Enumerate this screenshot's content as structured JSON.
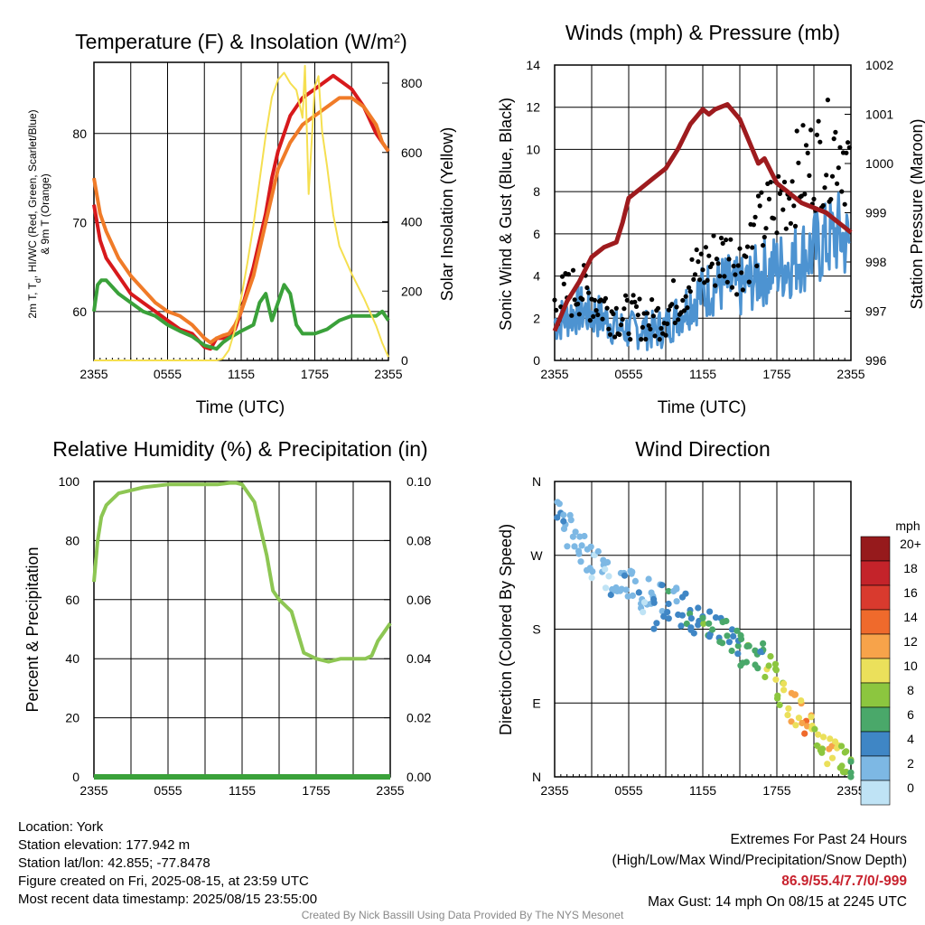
{
  "charts": {
    "temperature": {
      "title_main": "Temperature (F) & Insolation (W/m",
      "title_sup": "2",
      "title_close": ")",
      "xlabel": "Time (UTC)",
      "ylabel_left_line1": "2m T, T",
      "ylabel_left_sub": "d",
      "ylabel_left_line1b": ", HI/WC (Red, Green, Scarlet/Blue)",
      "ylabel_left_line2": "& 9m T (Orange)",
      "ylabel_right": "Solar Insolation (Yellow)"
    },
    "winds": {
      "title": "Winds (mph) & Pressure (mb)",
      "xlabel": "Time (UTC)",
      "ylabel_left": "Sonic Wind & Gust (Blue, Black)",
      "ylabel_right": "Station Pressure (Maroon)"
    },
    "humidity": {
      "title": "Relative Humidity (%) & Precipitation (in)",
      "ylabel_left": "Percent & Precipitation"
    },
    "direction": {
      "title": "Wind Direction",
      "ylabel_left": "Direction (Colored By Speed)",
      "legend_title": "mph"
    }
  },
  "chart_data": [
    {
      "type": "line",
      "title": "Temperature (F) & Insolation (W/m2)",
      "xlabel": "Time (UTC)",
      "x_ticks": [
        "2355",
        "0555",
        "1155",
        "1755",
        "2355"
      ],
      "x_hours": [
        0,
        24
      ],
      "ylim_left": [
        54.5,
        88
      ],
      "y_ticks_left": [
        60,
        70,
        80
      ],
      "ylim_right": [
        0,
        860
      ],
      "y_ticks_right": [
        0,
        200,
        400,
        600,
        800
      ],
      "series": [
        {
          "name": "2m T",
          "color": "#d7191c",
          "axis": "left",
          "x": [
            0,
            0.5,
            1,
            2,
            3,
            4,
            5,
            6,
            7,
            8,
            9,
            9.5,
            10,
            10.5,
            11,
            11.5,
            12,
            13,
            14,
            14.5,
            15,
            16,
            17,
            18,
            19,
            19.5,
            20,
            21,
            22,
            23,
            23.5,
            24
          ],
          "y": [
            72,
            68,
            66,
            64,
            62,
            61,
            60,
            59,
            58,
            57.5,
            56,
            55.8,
            57,
            57,
            57.3,
            58,
            60,
            65,
            71,
            75,
            78,
            82,
            84,
            85,
            86,
            86.5,
            86,
            85,
            83,
            80,
            79,
            78
          ]
        },
        {
          "name": "9m T",
          "color": "#f07b28",
          "axis": "left",
          "x": [
            0,
            0.5,
            1,
            2,
            3,
            4,
            5,
            6,
            7,
            8,
            9,
            9.5,
            10,
            10.5,
            11,
            11.5,
            12,
            13,
            14,
            14.5,
            15,
            16,
            17,
            18,
            19,
            20,
            21,
            22,
            23,
            23.5,
            24
          ],
          "y": [
            75,
            71,
            69,
            66,
            64,
            62.5,
            61,
            60,
            59.5,
            58.5,
            57,
            56.5,
            57,
            57.3,
            57.5,
            58.5,
            60,
            64,
            70,
            73,
            76,
            79,
            81,
            82,
            83,
            84,
            84,
            83,
            81,
            79,
            78
          ]
        },
        {
          "name": "Td",
          "color": "#3aa13a",
          "axis": "left",
          "x": [
            0,
            0.3,
            0.6,
            1,
            2,
            3,
            4,
            5,
            6,
            7,
            8,
            9,
            10,
            10.5,
            11,
            12,
            13,
            13.5,
            14,
            14.5,
            15,
            15.5,
            16,
            16.5,
            17,
            18,
            19,
            20,
            21,
            22,
            23,
            23.5,
            24
          ],
          "y": [
            60,
            63,
            63.5,
            63.5,
            62,
            61,
            60,
            59.5,
            58.5,
            57.8,
            57.2,
            56.2,
            55.8,
            56.5,
            57,
            57.8,
            58.5,
            61,
            62,
            59,
            61,
            63,
            62,
            58.5,
            57.5,
            57.5,
            58,
            59,
            59.5,
            59.5,
            59.5,
            60,
            59
          ]
        },
        {
          "name": "Solar Insolation",
          "color": "#f5df50",
          "axis": "right",
          "x": [
            0,
            0.5,
            1,
            2,
            3,
            4,
            5,
            6,
            7,
            8,
            9,
            10,
            10.5,
            11,
            11.5,
            12,
            12.5,
            13,
            13.5,
            14,
            14.5,
            15,
            15.5,
            16,
            16.5,
            17,
            17.2,
            17.5,
            18,
            18.3,
            18.6,
            19,
            19.5,
            20,
            21,
            22,
            23,
            23.5,
            24
          ],
          "y": [
            0,
            0,
            0,
            0,
            0,
            0,
            0,
            0,
            0,
            0,
            0,
            0,
            5,
            30,
            90,
            180,
            280,
            390,
            520,
            650,
            760,
            810,
            830,
            800,
            780,
            700,
            850,
            480,
            790,
            820,
            660,
            560,
            420,
            330,
            250,
            180,
            100,
            50,
            10
          ]
        }
      ]
    },
    {
      "type": "scatter",
      "title": "Winds (mph) & Pressure (mb)",
      "xlabel": "Time (UTC)",
      "x_ticks": [
        "2355",
        "0555",
        "1155",
        "1755",
        "2355"
      ],
      "ylim_left": [
        0,
        14
      ],
      "y_ticks_left": [
        0,
        2,
        4,
        6,
        8,
        10,
        12,
        14
      ],
      "ylim_right": [
        996,
        1002
      ],
      "y_ticks_right": [
        996,
        997,
        998,
        999,
        1000,
        1001,
        1002
      ],
      "series": [
        {
          "name": "Sonic Wind",
          "color": "#4d93d1",
          "axis": "left",
          "x": [
            0,
            1,
            2,
            3,
            4,
            5,
            6,
            7,
            8,
            9,
            10,
            11,
            12,
            13,
            14,
            15,
            16,
            17,
            18,
            19,
            20,
            21,
            22,
            23,
            24
          ],
          "y": [
            1.8,
            2.1,
            2.4,
            2.2,
            2.0,
            1.6,
            1.4,
            1.5,
            1.4,
            1.6,
            2.2,
            2.8,
            3.2,
            3.6,
            3.6,
            3.4,
            3.8,
            4.2,
            4.4,
            4.6,
            5.0,
            5.2,
            5.6,
            6.0,
            5.4
          ]
        },
        {
          "name": "Gust",
          "color": "#000000",
          "axis": "left",
          "x": [
            0,
            1,
            2,
            3,
            4,
            5,
            6,
            7,
            8,
            9,
            10,
            11,
            12,
            13,
            14,
            15,
            16,
            17,
            18,
            19,
            20,
            21,
            22,
            23,
            24
          ],
          "y": [
            2.6,
            3.1,
            3.4,
            3.0,
            2.6,
            2.2,
            2.0,
            2.0,
            1.9,
            2.2,
            3.0,
            3.8,
            4.4,
            4.8,
            5.0,
            4.6,
            5.6,
            6.6,
            7.4,
            8.2,
            9.0,
            9.4,
            9.8,
            10.4,
            9.0
          ]
        },
        {
          "name": "Station Pressure",
          "color": "#9e1b1e",
          "axis": "right",
          "x": [
            0,
            1,
            2,
            3,
            4,
            5,
            5.5,
            6,
            7,
            8,
            9,
            10,
            11,
            12,
            12.5,
            13,
            14,
            15,
            16,
            16.5,
            17,
            18,
            19,
            20,
            21,
            22,
            22.5,
            23,
            23.5,
            24
          ],
          "y": [
            996.6,
            997.2,
            997.6,
            998.1,
            998.3,
            998.4,
            998.8,
            999.3,
            999.5,
            999.7,
            999.9,
            1000.3,
            1000.8,
            1001.1,
            1001,
            1001.1,
            1001.2,
            1000.9,
            1000.3,
            1000,
            1000.1,
            999.6,
            999.4,
            999.2,
            999.1,
            999,
            998.9,
            998.8,
            998.7,
            998.6
          ]
        }
      ]
    },
    {
      "type": "line",
      "title": "Relative Humidity (%) & Precipitation (in)",
      "ylabel": "Percent & Precipitation",
      "x_ticks": [
        "2355",
        "0555",
        "1155",
        "1755",
        "2355"
      ],
      "ylim_left": [
        0,
        100
      ],
      "y_ticks_left": [
        0,
        20,
        40,
        60,
        80,
        100
      ],
      "ylim_right": [
        0,
        0.1
      ],
      "y_ticks_right": [
        "0.00",
        "0.02",
        "0.04",
        "0.06",
        "0.08",
        "0.10"
      ],
      "series": [
        {
          "name": "Relative Humidity",
          "color": "#8dc653",
          "axis": "left",
          "x": [
            0,
            0.3,
            0.6,
            1,
            2,
            3,
            4,
            5,
            6,
            7,
            8,
            9,
            10,
            11,
            11.5,
            12,
            13,
            14,
            14.5,
            15,
            16,
            17,
            18,
            19,
            20,
            21,
            22,
            22.5,
            23,
            23.5,
            24
          ],
          "y": [
            66,
            80,
            88,
            92,
            96,
            97,
            98,
            98.5,
            99,
            99,
            99,
            99,
            99,
            99.5,
            99.5,
            99,
            93,
            75,
            63,
            60,
            56,
            42,
            40,
            39,
            40,
            40,
            40,
            41,
            46,
            49,
            52
          ]
        },
        {
          "name": "Precipitation",
          "color": "#3aa13a",
          "axis": "right",
          "x": [
            0,
            24
          ],
          "y": [
            0,
            0
          ]
        }
      ]
    },
    {
      "type": "scatter",
      "title": "Wind Direction",
      "ylabel": "Direction (Colored By Speed)",
      "x_ticks": [
        "2355",
        "0555",
        "1155",
        "1755",
        "2355"
      ],
      "y_ticks": [
        "N",
        "E",
        "S",
        "W",
        "N"
      ],
      "ylim": [
        0,
        360
      ],
      "legend_labels": [
        "20+",
        "18",
        "16",
        "14",
        "12",
        "10",
        "8",
        "6",
        "4",
        "2",
        "0"
      ],
      "legend_colors": [
        "#961a1c",
        "#c4232a",
        "#d93a2e",
        "#ef6a2c",
        "#f7a34a",
        "#ebe05b",
        "#8cc63f",
        "#4aa86a",
        "#3f86c5",
        "#7db8e4",
        "#bfe3f5"
      ],
      "series": [
        {
          "name": "Direction",
          "x": [
            0,
            0.5,
            1,
            1.5,
            2,
            2.5,
            3,
            3.5,
            4,
            4.5,
            5,
            5.5,
            6,
            6.5,
            7,
            7.5,
            8,
            8.5,
            9,
            9.5,
            10,
            10.5,
            11,
            11.5,
            12,
            12.5,
            13,
            13.5,
            14,
            14.5,
            15,
            15.5,
            16,
            16.5,
            17,
            17.5,
            18,
            18.5,
            19,
            19.5,
            20,
            20.5,
            21,
            21.5,
            22,
            22.5,
            23,
            23.5,
            24
          ],
          "y": [
            330,
            310,
            300,
            285,
            280,
            270,
            255,
            260,
            250,
            240,
            245,
            240,
            235,
            220,
            210,
            230,
            200,
            215,
            210,
            220,
            200,
            205,
            195,
            190,
            180,
            185,
            175,
            170,
            165,
            160,
            155,
            150,
            145,
            160,
            130,
            120,
            100,
            95,
            85,
            80,
            70,
            55,
            40,
            35,
            30,
            25,
            20,
            15,
            10
          ],
          "speed": [
            1,
            1,
            1,
            1,
            1,
            1,
            0,
            1,
            0,
            1,
            1,
            1,
            1,
            1,
            0,
            1,
            2,
            1,
            2,
            1,
            2,
            2,
            2,
            2,
            3,
            2,
            2,
            3,
            2,
            2,
            3,
            3,
            3,
            2,
            4,
            4,
            4,
            5,
            6,
            5,
            6,
            5,
            4,
            4,
            5,
            5,
            4,
            4,
            3
          ]
        }
      ]
    }
  ],
  "footer": {
    "location": "Location: York",
    "elevation": "Station elevation: 177.942 m",
    "latlon": "Station lat/lon: 42.855; -77.8478",
    "created": "Figure created on Fri, 2025-08-15, at 23:59 UTC",
    "recent": "Most recent data timestamp: 2025/08/15 23:55:00",
    "extremes_title": "Extremes For Past 24 Hours",
    "extremes_fields": "(High/Low/Max Wind/Precipitation/Snow Depth)",
    "extremes_values": "86.9/55.4/7.7/0/-999",
    "max_gust": "Max Gust: 14 mph On 08/15 at 2245 UTC",
    "credit": "Created By Nick Bassill Using Data Provided By The NYS Mesonet"
  }
}
